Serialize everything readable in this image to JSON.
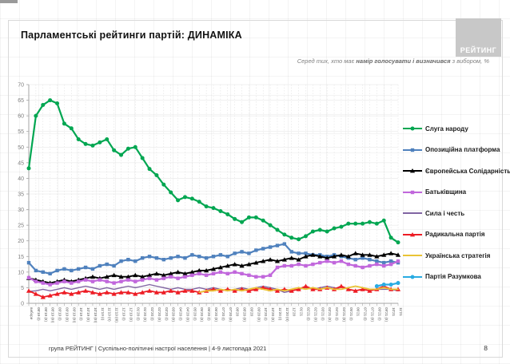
{
  "slide": {
    "title": "Парламентські рейтинги партій: ДИНАМІКА",
    "subtitle_prefix": "Серед тих, хто має ",
    "subtitle_bold": "намір голосувати і визначився",
    "subtitle_suffix": " з вибором, %",
    "logo_text": "РЕЙТИНГ",
    "footer": "група РЕЙТИНГ | Суспільно-політичні настрої населення  | 4-9 листопада 2021",
    "page_number": "8"
  },
  "chart_data": {
    "type": "line",
    "title": "Парламентські рейтинги партій: ДИНАМІКА",
    "ylabel": "",
    "xlabel": "",
    "ylim": [
      0,
      70
    ],
    "ytick_step": 5,
    "grid": true,
    "legend_position": "right",
    "categories": [
      "вибори",
      "08'19 (І)",
      "08'19 (ІІ)",
      "08'19 (ІІІ)",
      "09'19 (І)",
      "09'19 (ІІ)",
      "09'19 (ІІІ)",
      "10'19 (І)",
      "10'19 (ІІ)",
      "10'19 (ІІІ)",
      "11'19 (І)",
      "11'19 (ІІ)",
      "11'19 (ІІІ)",
      "12'19 (І)",
      "12'19 (ІІ)",
      "01'20 (І)",
      "01'20 (ІІ)",
      "02'20 (І)",
      "02'20 (ІІ)",
      "03'20 (І)",
      "03'20 (ІІ)",
      "04'20 (І)",
      "04'20 (ІІ)",
      "05'20 (І)",
      "05'20 (ІІ)",
      "06'20 (І)",
      "06'20 (ІІ)",
      "07'20 (І)",
      "07'20 (ІІ)",
      "08'20",
      "08'20 (ІІ)",
      "09'20",
      "09'20 (ІІ)",
      "10'20 (І)",
      "10'20 (ІІ)",
      "11'20 (І)",
      "11'20 (ІІ)",
      "12'20",
      "01'21",
      "02'21 (І)",
      "02'21 (ІІ)",
      "03'21 (І)",
      "03'21 (ІІ)",
      "04'21 (І)",
      "04'21 (ІІ)",
      "05'21 (І)",
      "06'21",
      "07'21 (І)",
      "07'21 (ІІ)",
      "09'21 (І)",
      "09'21 (ІІ)",
      "10'21",
      "11'21"
    ],
    "series": [
      {
        "name": "Слуга народу",
        "color": "#00A651",
        "marker": "circle",
        "values": [
          43.2,
          60,
          63.5,
          65,
          64,
          57.5,
          56,
          52.5,
          51,
          50.5,
          51.5,
          52.5,
          49,
          47.5,
          49.5,
          50,
          46.5,
          43,
          41,
          38,
          35.5,
          33,
          34,
          33.5,
          32.5,
          31,
          30.5,
          29.5,
          28.5,
          27,
          26,
          27.5,
          27.5,
          26.5,
          25,
          23.5,
          22,
          21,
          20.5,
          21.5,
          23,
          23.5,
          23,
          24,
          24.5,
          25.5,
          25.5,
          25.5,
          26,
          25.5,
          26.5,
          21,
          19.5
        ]
      },
      {
        "name": "Опозиційна платформа",
        "color": "#4F81BD",
        "marker": "square",
        "values": [
          13,
          10.5,
          10,
          9.5,
          10.5,
          11,
          10.5,
          11,
          11.5,
          11,
          12,
          12.5,
          12,
          13.5,
          14,
          13.5,
          14.5,
          15,
          14.5,
          14,
          14.5,
          15,
          14.5,
          15.5,
          15,
          14.5,
          15,
          15.5,
          15,
          16,
          16.5,
          16,
          17,
          17.5,
          18,
          18.5,
          19,
          16.5,
          16,
          16,
          15.5,
          15.5,
          15,
          15.5,
          15,
          14.5,
          14,
          14.5,
          14,
          13.5,
          13,
          13.5,
          13
        ]
      },
      {
        "name": "Європейська Солідарність",
        "color": "#000000",
        "marker": "triangle",
        "values": [
          8.1,
          7.5,
          7,
          6.5,
          7,
          7.5,
          7,
          7.5,
          8,
          8.5,
          8,
          8.5,
          9,
          8.5,
          8.5,
          9,
          8.5,
          9,
          9.5,
          9,
          9.5,
          10,
          9.5,
          10,
          10.5,
          10.5,
          11,
          11.5,
          12,
          12.5,
          12,
          12.5,
          13,
          13.5,
          14,
          13.5,
          14,
          14.5,
          14,
          15,
          15.5,
          15,
          14.5,
          15,
          15.5,
          15,
          16,
          15.5,
          15.5,
          15,
          15.5,
          16,
          15.5
        ]
      },
      {
        "name": "Батьківщина",
        "color": "#C167DC",
        "marker": "square",
        "values": [
          8.2,
          7,
          6.5,
          6,
          6.5,
          7,
          6.5,
          7,
          7.5,
          7,
          7.5,
          7,
          6.5,
          7,
          7.5,
          7,
          7.5,
          8,
          7.5,
          8,
          8.5,
          8,
          8.5,
          9,
          9.5,
          9,
          9.5,
          10,
          9.5,
          10,
          9.5,
          9,
          8.5,
          8.5,
          9,
          11.5,
          12,
          12,
          12.5,
          12,
          12.5,
          13,
          13.5,
          13,
          13.5,
          12.5,
          12,
          11.5,
          12,
          12.5,
          12,
          12.5,
          13.5
        ]
      },
      {
        "name": "Сила і честь",
        "color": "#8064A2",
        "marker": "none",
        "values": [
          3.8,
          4,
          4.5,
          4,
          4.5,
          5,
          4.5,
          5,
          5.5,
          5,
          4.5,
          5,
          4.5,
          5,
          5.5,
          5,
          5.5,
          6,
          5.5,
          5,
          4.5,
          5,
          4.5,
          4.5,
          5,
          4.5,
          5,
          4.5,
          4,
          4.5,
          5,
          4.5,
          5,
          5.5,
          5,
          4.5,
          3.5,
          4,
          4.5,
          5,
          4.5,
          5,
          5.5,
          5,
          4.5,
          5,
          5.5,
          5,
          4.5,
          4.5,
          4.5,
          4.5,
          4
        ]
      },
      {
        "name": "Радикальна партія",
        "color": "#ED1C24",
        "marker": "triangle",
        "values": [
          4,
          3,
          2,
          2.5,
          3,
          3.5,
          3,
          3.5,
          4,
          3.5,
          3,
          3.5,
          3,
          3.5,
          3.5,
          3,
          3.5,
          4,
          3.5,
          3.5,
          4,
          3.5,
          4,
          4,
          3.5,
          4,
          4.5,
          4,
          4.5,
          4,
          4.5,
          4,
          4.5,
          5,
          4.5,
          4,
          4.5,
          4,
          4.5,
          5.5,
          4.5,
          4.5,
          5,
          4.5,
          5.5,
          4.5,
          4,
          4.5,
          4,
          4.5,
          5.5,
          4.5,
          4.5
        ]
      },
      {
        "name": "Українська стратегія",
        "color": "#EAC435",
        "marker": "none",
        "values": [
          null,
          null,
          null,
          null,
          null,
          null,
          null,
          null,
          null,
          null,
          null,
          null,
          null,
          null,
          null,
          null,
          null,
          null,
          null,
          null,
          null,
          null,
          null,
          null,
          3.5,
          4,
          4,
          4.5,
          4,
          4.5,
          4,
          4.5,
          5,
          4.5,
          4,
          4.5,
          4,
          4.5,
          5,
          4.5,
          5,
          4.5,
          5,
          4.5,
          4.5,
          5,
          5.5,
          5,
          4.5,
          4.5,
          5,
          4.5,
          4.5
        ]
      },
      {
        "name": "Партія Разумкова",
        "color": "#29ABE2",
        "marker": "circle",
        "values": [
          null,
          null,
          null,
          null,
          null,
          null,
          null,
          null,
          null,
          null,
          null,
          null,
          null,
          null,
          null,
          null,
          null,
          null,
          null,
          null,
          null,
          null,
          null,
          null,
          null,
          null,
          null,
          null,
          null,
          null,
          null,
          null,
          null,
          null,
          null,
          null,
          null,
          null,
          null,
          null,
          null,
          null,
          null,
          null,
          null,
          null,
          null,
          null,
          null,
          5.5,
          6,
          6,
          6.5
        ]
      }
    ]
  }
}
